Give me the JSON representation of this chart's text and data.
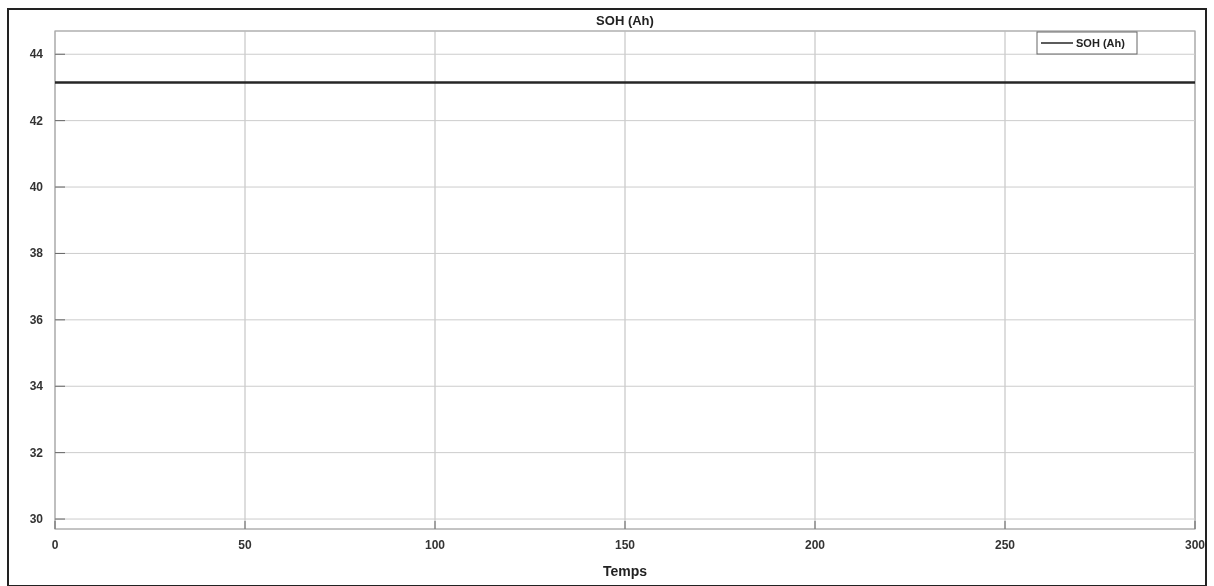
{
  "chart_data": {
    "type": "line",
    "title": "SOH (Ah)",
    "xlabel": "Temps",
    "x": [
      0,
      300
    ],
    "series": [
      {
        "name": "SOH (Ah)",
        "color": "#262626",
        "values": [
          43.15,
          43.15
        ]
      }
    ],
    "xlim": [
      0,
      300
    ],
    "xticks": [
      0,
      50,
      100,
      150,
      200,
      250,
      300
    ],
    "ylim": [
      29.7,
      44.7
    ],
    "yticks": [
      30,
      32,
      34,
      36,
      38,
      40,
      42,
      44
    ],
    "grid": true,
    "legend": "top right",
    "marker": "none",
    "line_style": "solid"
  }
}
